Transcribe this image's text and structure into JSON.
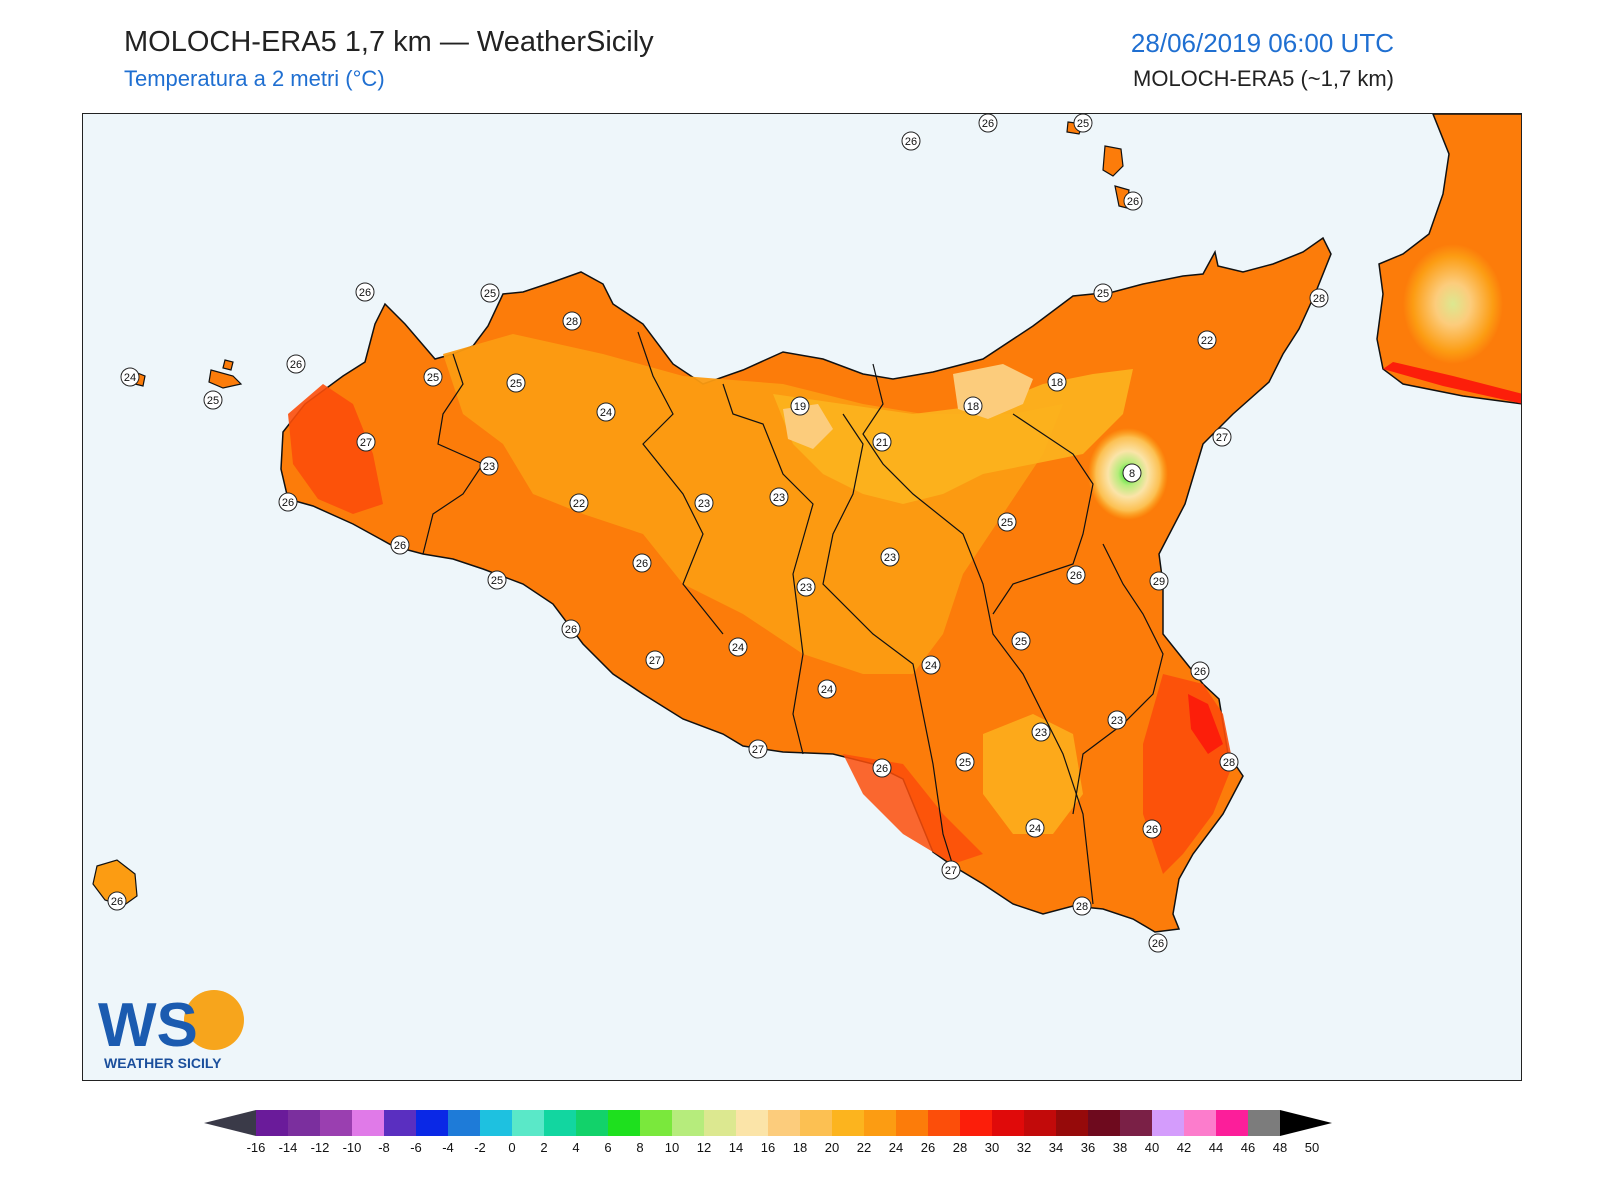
{
  "header": {
    "title": "MOLOCH-ERA5 1,7 km — WeatherSicily",
    "subtitle": "Temperatura a 2 metri (°C)",
    "datetime": "28/06/2019 06:00 UTC",
    "model": "MOLOCH-ERA5 (~1,7 km)"
  },
  "map": {
    "background_color": "#eef6fa",
    "stations": [
      {
        "value": "26"
      },
      {
        "value": "26"
      },
      {
        "value": "25"
      },
      {
        "value": "26"
      },
      {
        "value": "26"
      },
      {
        "value": "28"
      },
      {
        "value": "25"
      },
      {
        "value": "24"
      },
      {
        "value": "26"
      },
      {
        "value": "25"
      },
      {
        "value": "25"
      },
      {
        "value": "25"
      },
      {
        "value": "27"
      },
      {
        "value": "24"
      },
      {
        "value": "23"
      },
      {
        "value": "26"
      },
      {
        "value": "26"
      },
      {
        "value": "25"
      },
      {
        "value": "22"
      },
      {
        "value": "19"
      },
      {
        "value": "21"
      },
      {
        "value": "18"
      },
      {
        "value": "18"
      },
      {
        "value": "25"
      },
      {
        "value": "28"
      },
      {
        "value": "22"
      },
      {
        "value": "27"
      },
      {
        "value": "8"
      },
      {
        "value": "23"
      },
      {
        "value": "23"
      },
      {
        "value": "25"
      },
      {
        "value": "26"
      },
      {
        "value": "23"
      },
      {
        "value": "23"
      },
      {
        "value": "26"
      },
      {
        "value": "29"
      },
      {
        "value": "26"
      },
      {
        "value": "27"
      },
      {
        "value": "24"
      },
      {
        "value": "24"
      },
      {
        "value": "24"
      },
      {
        "value": "25"
      },
      {
        "value": "26"
      },
      {
        "value": "27"
      },
      {
        "value": "26"
      },
      {
        "value": "25"
      },
      {
        "value": "23"
      },
      {
        "value": "23"
      },
      {
        "value": "28"
      },
      {
        "value": "26"
      },
      {
        "value": "24"
      },
      {
        "value": "27"
      },
      {
        "value": "28"
      },
      {
        "value": "26"
      },
      {
        "value": "26"
      }
    ]
  },
  "colorbar": {
    "unit": "°C",
    "ticks": [
      "-16",
      "-14",
      "-12",
      "-10",
      "-8",
      "-6",
      "-4",
      "-2",
      "0",
      "2",
      "4",
      "6",
      "8",
      "10",
      "12",
      "14",
      "16",
      "18",
      "20",
      "22",
      "24",
      "26",
      "28",
      "30",
      "32",
      "34",
      "36",
      "38",
      "40",
      "42",
      "44",
      "46",
      "48",
      "50"
    ],
    "colors": [
      "#3d0a4f",
      "#6a1b9a",
      "#7b2f9e",
      "#9a3fb0",
      "#e07ae8",
      "#5a2fc0",
      "#0a28e6",
      "#1e7bd8",
      "#1ec1e0",
      "#5ae8c8",
      "#12d6a0",
      "#12d26a",
      "#1ee01e",
      "#7ae83c",
      "#b6ec7c",
      "#dce890",
      "#fbe4a8",
      "#fccc7c",
      "#fcc052",
      "#fcb41e",
      "#fc9c12",
      "#fc7c0a",
      "#fc4e0a",
      "#fc1e0a",
      "#e00a0a",
      "#c20a0a",
      "#960a0a",
      "#6e0a1e",
      "#7a2046",
      "#d49cfc",
      "#fc7ccc",
      "#fc1e9a",
      "#7c7c7c",
      "#3c3c3c"
    ]
  },
  "logo": {
    "letters": "WS",
    "name": "WEATHER SICILY"
  }
}
